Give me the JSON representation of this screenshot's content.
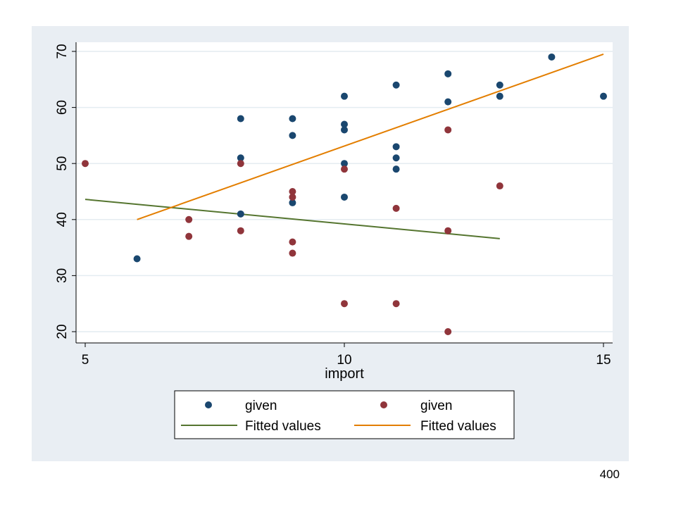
{
  "page_number": "400",
  "colors": {
    "panel_bg": "#e9eef3",
    "plot_bg": "#ffffff",
    "gridline": "#e4ecf1",
    "series_blue": "#1a476f",
    "series_red": "#90353b",
    "fit_green": "#55752f",
    "fit_orange": "#e37e00"
  },
  "chart_data": {
    "type": "scatter",
    "title": "",
    "xlabel": "import",
    "ylabel": "",
    "xlim": [
      5,
      15
    ],
    "ylim": [
      20,
      70
    ],
    "xticks": [
      5,
      10,
      15
    ],
    "yticks": [
      20,
      30,
      40,
      50,
      60,
      70
    ],
    "grid": true,
    "legend_position": "bottom",
    "series": [
      {
        "name": "given",
        "kind": "points",
        "color": "#1a476f",
        "points": [
          [
            6,
            33
          ],
          [
            8,
            41
          ],
          [
            8,
            51
          ],
          [
            8,
            58
          ],
          [
            9,
            43
          ],
          [
            9,
            55
          ],
          [
            9,
            58
          ],
          [
            10,
            44
          ],
          [
            10,
            50
          ],
          [
            10,
            56
          ],
          [
            10,
            57
          ],
          [
            10,
            62
          ],
          [
            11,
            49
          ],
          [
            11,
            51
          ],
          [
            11,
            53
          ],
          [
            11,
            64
          ],
          [
            12,
            61
          ],
          [
            12,
            66
          ],
          [
            13,
            62
          ],
          [
            13,
            64
          ],
          [
            14,
            69
          ],
          [
            15,
            62
          ]
        ]
      },
      {
        "name": "given",
        "kind": "points",
        "color": "#90353b",
        "points": [
          [
            5,
            50
          ],
          [
            7,
            37
          ],
          [
            7,
            40
          ],
          [
            8,
            38
          ],
          [
            8,
            50
          ],
          [
            9,
            34
          ],
          [
            9,
            36
          ],
          [
            9,
            44
          ],
          [
            9,
            45
          ],
          [
            10,
            25
          ],
          [
            10,
            49
          ],
          [
            11,
            25
          ],
          [
            11,
            42
          ],
          [
            12,
            20
          ],
          [
            12,
            38
          ],
          [
            12,
            56
          ],
          [
            13,
            46
          ]
        ]
      },
      {
        "name": "Fitted values",
        "kind": "line",
        "color": "#55752f",
        "points": [
          [
            5,
            43.6
          ],
          [
            13,
            36.6
          ]
        ]
      },
      {
        "name": "Fitted values",
        "kind": "line",
        "color": "#e37e00",
        "points": [
          [
            6,
            40.0
          ],
          [
            15,
            69.5
          ]
        ]
      }
    ]
  }
}
